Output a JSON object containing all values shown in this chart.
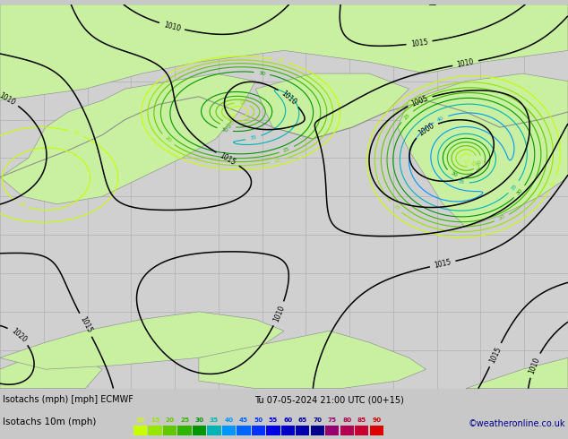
{
  "title_bottom": "Isotachs 10m (mph)",
  "axis_label_bottom": "Isotachs (mph) [mph] ECMWF",
  "datetime_label": "Tu 07-05-2024 21:00 UTC (00+15)",
  "copyright": "©weatheronline.co.uk",
  "legend_values": [
    10,
    15,
    20,
    25,
    30,
    35,
    40,
    45,
    50,
    55,
    60,
    65,
    70,
    75,
    80,
    85,
    90
  ],
  "legend_colors": [
    "#c8ff00",
    "#96e600",
    "#64c800",
    "#32b400",
    "#009600",
    "#00b4b4",
    "#0096ff",
    "#0064ff",
    "#0032ff",
    "#0000e6",
    "#0000c8",
    "#0000aa",
    "#00008c",
    "#96006e",
    "#b40050",
    "#c80032",
    "#dc0000"
  ],
  "sea_color": "#d0d0d0",
  "land_color": "#c8f0a0",
  "grid_color": "#b0b0b0",
  "figsize": [
    6.34,
    4.9
  ],
  "dpi": 100
}
